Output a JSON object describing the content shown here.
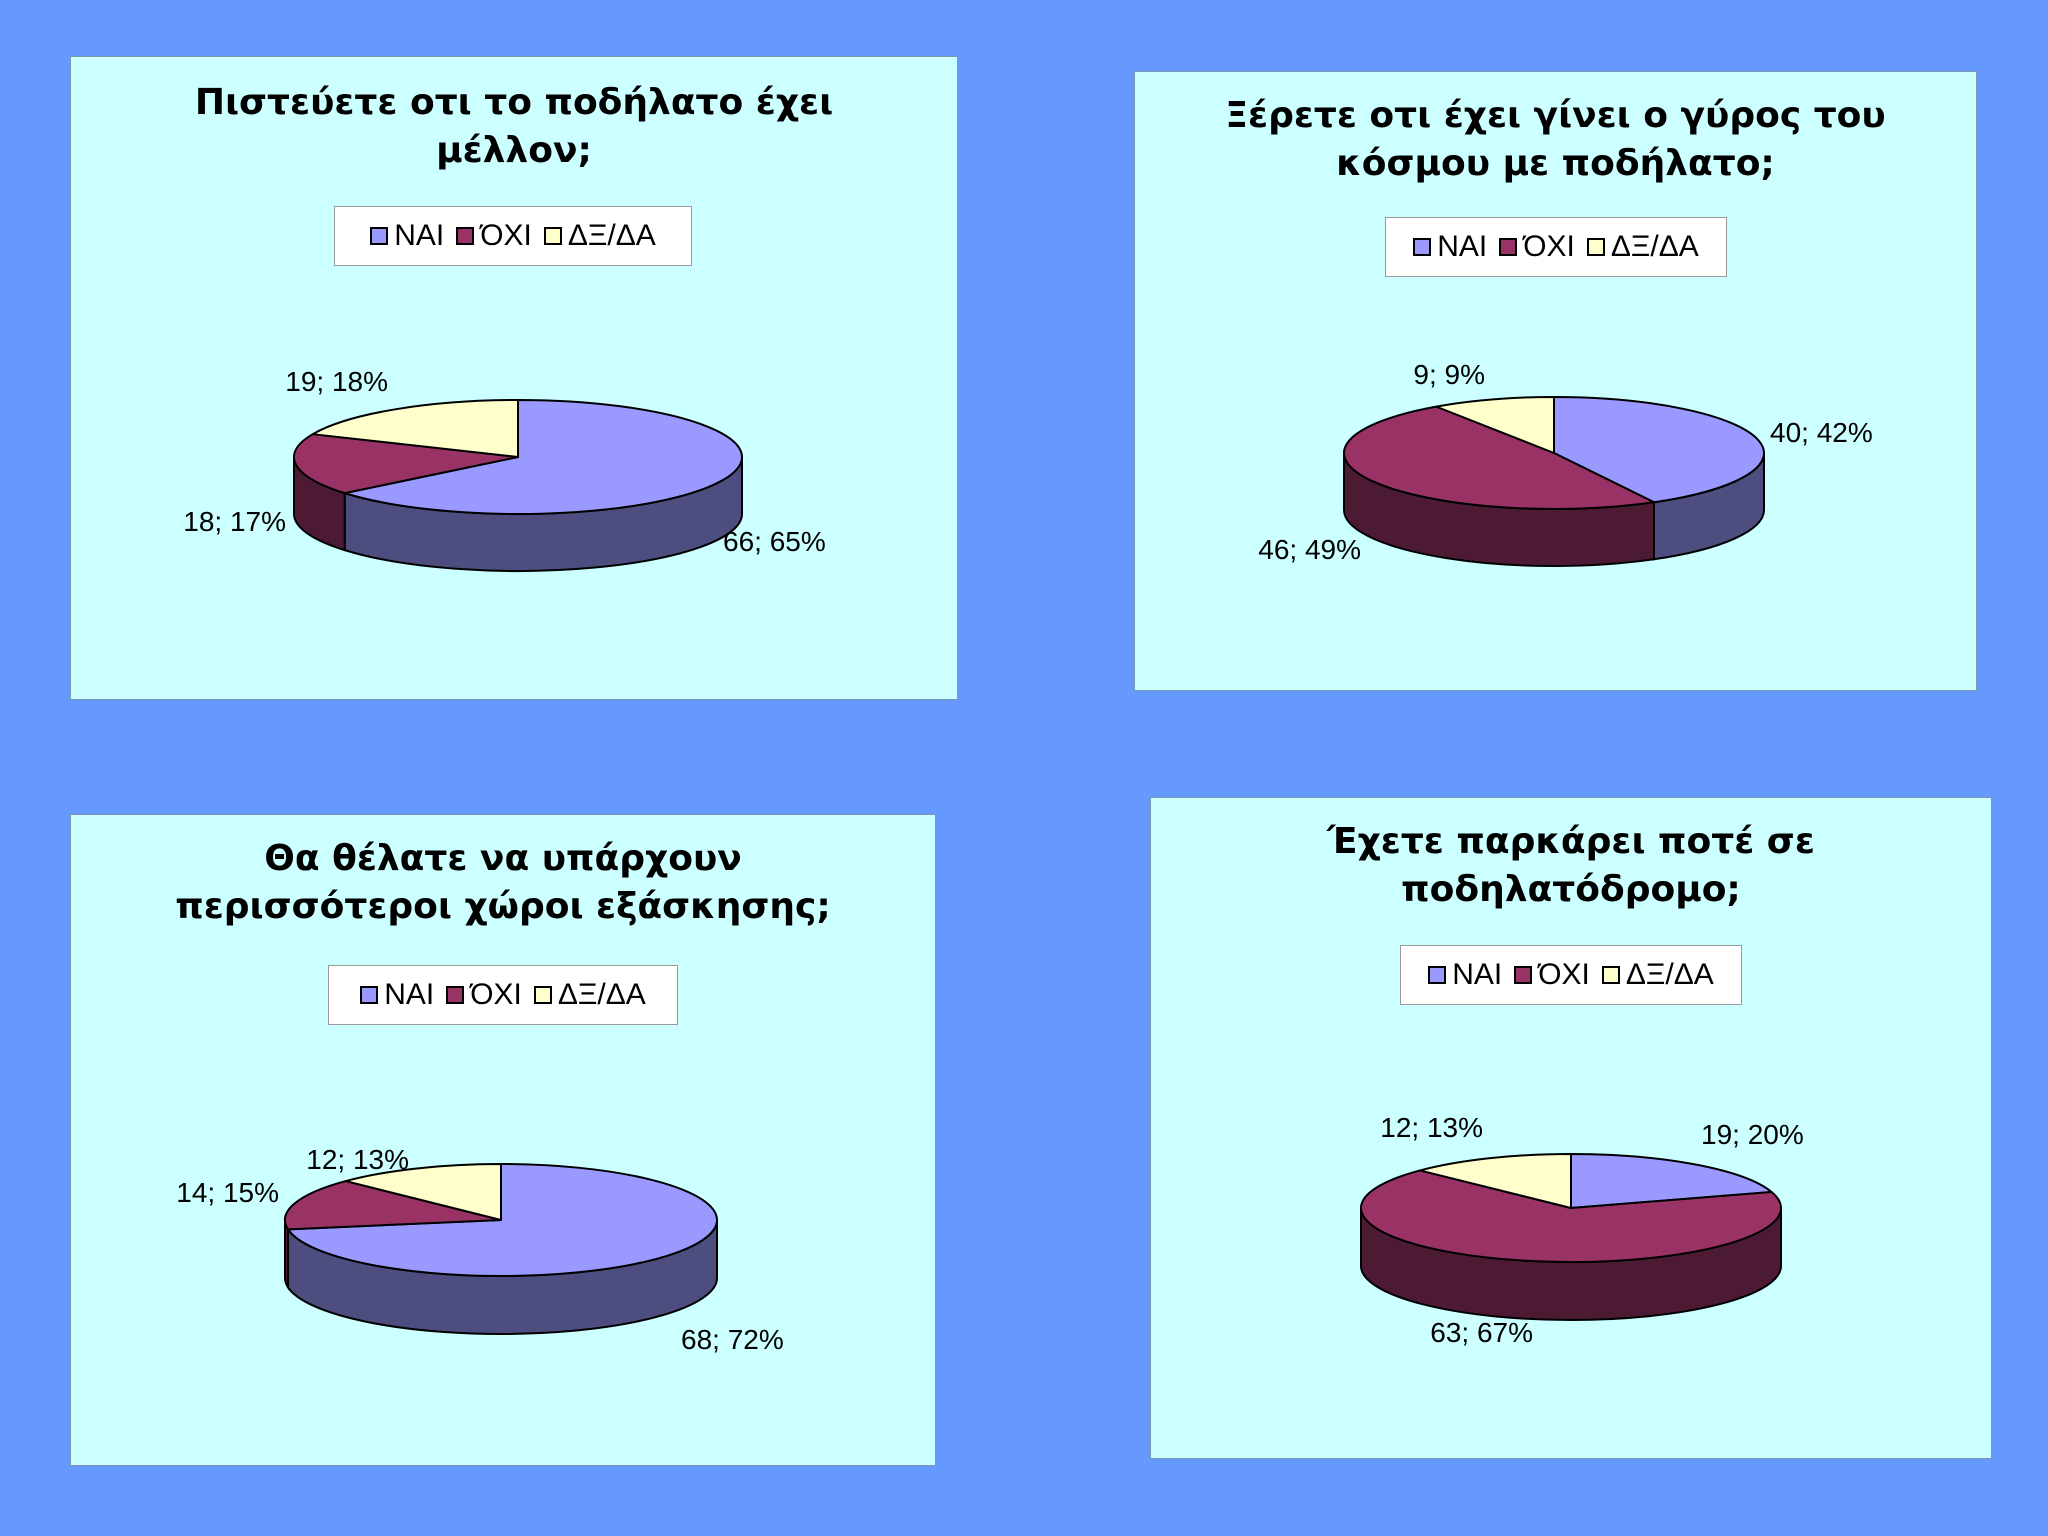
{
  "colors": {
    "background": "#6699FF",
    "panel": "#CCFFFF",
    "legend_keys": [
      "#9999FF",
      "#993366",
      "#FFFFCC"
    ]
  },
  "chart_data": [
    {
      "type": "pie",
      "title_lines": [
        "Πιστεύετε οτι το ποδήλατο έχει",
        "μέλλον;"
      ],
      "legend": [
        "ΝΑΙ",
        "ΌΧΙ",
        "ΔΞ/ΔΑ"
      ],
      "legend_position": "top",
      "values": [
        66,
        18,
        19
      ],
      "data_labels": [
        "66; 65%",
        "18; 17%",
        "19; 18%"
      ]
    },
    {
      "type": "pie",
      "title_lines": [
        "Ξέρετε οτι έχει γίνει ο γύρος του",
        "κόσμου με ποδήλατο;"
      ],
      "legend": [
        "ΝΑΙ",
        "ΌΧΙ",
        "ΔΞ/ΔΑ"
      ],
      "legend_position": "top",
      "values": [
        40,
        46,
        9
      ],
      "data_labels": [
        "40; 42%",
        "46; 49%",
        "9; 9%"
      ]
    },
    {
      "type": "pie",
      "title_lines": [
        "Θα θέλατε να υπάρχουν",
        "περισσότεροι χώροι εξάσκησης;"
      ],
      "legend": [
        "ΝΑΙ",
        "ΌΧΙ",
        "ΔΞ/ΔΑ"
      ],
      "legend_position": "top",
      "values": [
        68,
        14,
        12
      ],
      "data_labels": [
        "68; 72%",
        "14; 15%",
        "12; 13%"
      ]
    },
    {
      "type": "pie",
      "title_lines": [
        "Έχετε παρκάρει ποτέ σε",
        "ποδηλατόδρομο;"
      ],
      "legend": [
        "ΝΑΙ",
        "ΌΧΙ",
        "ΔΞ/ΔΑ"
      ],
      "legend_position": "top",
      "values": [
        19,
        63,
        12
      ],
      "data_labels": [
        "19; 20%",
        "63; 67%",
        "12; 13%"
      ]
    }
  ]
}
